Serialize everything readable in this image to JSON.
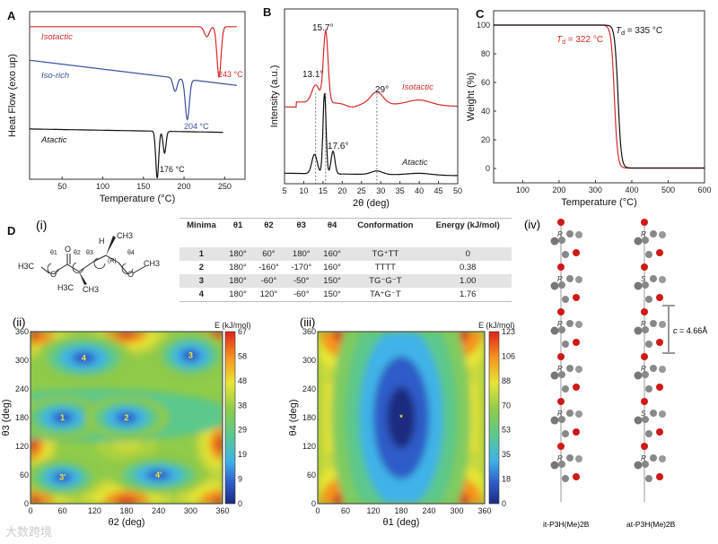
{
  "chart_data": [
    {
      "panel": "A",
      "type": "line",
      "xlabel": "Temperature (°C)",
      "ylabel": "Heat Flow (exo up)",
      "xlim": [
        10,
        275
      ],
      "ylim": [
        0,
        100
      ],
      "xticks": [
        "50",
        "100",
        "150",
        "200",
        "250"
      ],
      "series": [
        {
          "name": "Isotactic",
          "color": "#d42a2a",
          "x_range": [
            10,
            265
          ],
          "baseline": [
            91,
            91
          ],
          "peaks": [
            {
              "x": 228,
              "depth": 6,
              "w": 3
            },
            {
              "x": 243,
              "depth": 30,
              "w": 2.5
            }
          ],
          "annotation": "243 °C"
        },
        {
          "name": "Iso-rich",
          "color": "#3a4fa0",
          "x_range": [
            10,
            265
          ],
          "baseline": [
            71,
            56
          ],
          "peaks": [
            {
              "x": 189,
              "depth": 8,
              "w": 2.5
            },
            {
              "x": 204,
              "depth": 24,
              "w": 2.5
            }
          ],
          "annotation": "204 °C"
        },
        {
          "name": "Atactic",
          "color": "#111111",
          "x_range": [
            10,
            248
          ],
          "baseline": [
            30,
            28
          ],
          "peaks": [
            {
              "x": 167,
              "depth": 28,
              "w": 1.8
            },
            {
              "x": 176,
              "depth": 13,
              "w": 1.8
            }
          ],
          "annotation": "176 °C"
        }
      ]
    },
    {
      "panel": "B",
      "type": "line",
      "xlabel": "2θ (deg)",
      "ylabel": "Intensity (a.u.)",
      "xlim": [
        5,
        50
      ],
      "ylim": [
        0,
        100
      ],
      "xticks": [
        "5",
        "10",
        "15",
        "20",
        "25",
        "30",
        "35",
        "40",
        "45",
        "50"
      ],
      "reference_lines": [
        13.1,
        15.7,
        29
      ],
      "annotations": [
        "15.7°",
        "13.1°",
        "29°",
        "17.6°"
      ],
      "series": [
        {
          "name": "Isotactic",
          "color": "#d42a2a",
          "baseline": 44,
          "peaks": [
            {
              "x": 13.1,
              "h": 10,
              "w": 1.0
            },
            {
              "x": 15.7,
              "h": 41,
              "w": 0.6
            },
            {
              "x": 22.5,
              "h": -2,
              "w": 1.5
            },
            {
              "x": 29,
              "h": 7,
              "w": 1.6
            },
            {
              "x": 40,
              "h": 3,
              "w": 3
            }
          ]
        },
        {
          "name": "Atactic",
          "color": "#111111",
          "baseline": 4,
          "peaks": [
            {
              "x": 12.8,
              "h": 11,
              "w": 0.7
            },
            {
              "x": 15.4,
              "h": 46,
              "w": 0.4
            },
            {
              "x": 17.6,
              "h": 13,
              "w": 0.5
            },
            {
              "x": 29,
              "h": 2,
              "w": 1.5
            },
            {
              "x": 40,
              "h": 1,
              "w": 3
            }
          ]
        }
      ]
    },
    {
      "panel": "C",
      "type": "line",
      "xlabel": "Temperature (°C)",
      "ylabel": "Weight (%)",
      "xlim": [
        20,
        600
      ],
      "ylim": [
        -10,
        110
      ],
      "xticks": [
        "100",
        "200",
        "300",
        "400",
        "500",
        "600"
      ],
      "yticks": [
        "0",
        "20",
        "40",
        "60",
        "80",
        "100"
      ],
      "series": [
        {
          "name": "T_d = 322 °C",
          "label_main": "T",
          "label_sub": "d",
          "label_rest": " = 322 °C",
          "color": "#d42a2a",
          "midpoint": 352,
          "width": 4.5
        },
        {
          "name": "T_d = 335 °C",
          "label_main": "T",
          "label_sub": "d",
          "label_rest": " = 335 °C",
          "color": "#111111",
          "midpoint": 362,
          "width": 4.5
        }
      ]
    },
    {
      "panel": "D(ii)",
      "type": "heatmap",
      "xlabel": "θ2 (deg)",
      "ylabel": "θ3 (deg)",
      "colorbar_label": "E (kJ/mol)",
      "xlim": [
        0,
        360
      ],
      "ylim": [
        0,
        360
      ],
      "xticks": [
        "0",
        "60",
        "120",
        "180",
        "240",
        "300",
        "360"
      ],
      "yticks": [
        "0",
        "60",
        "120",
        "180",
        "240",
        "300",
        "360"
      ],
      "colorbar_ticks": [
        "0",
        "9",
        "19",
        "29",
        "38",
        "48",
        "58",
        "67"
      ],
      "minima": [
        {
          "label": "1",
          "x": 60,
          "y": 180
        },
        {
          "label": "2",
          "x": 180,
          "y": 180
        },
        {
          "label": "3",
          "x": 300,
          "y": 310
        },
        {
          "label": "4",
          "x": 100,
          "y": 305
        },
        {
          "label": "3'",
          "x": 60,
          "y": 55
        },
        {
          "label": "4'",
          "x": 240,
          "y": 60
        }
      ]
    },
    {
      "panel": "D(iii)",
      "type": "heatmap",
      "xlabel": "θ1 (deg)",
      "ylabel": "θ4 (deg)",
      "colorbar_label": "E (kJ/mol)",
      "xlim": [
        0,
        360
      ],
      "ylim": [
        0,
        360
      ],
      "xticks": [
        "0",
        "60",
        "120",
        "180",
        "240",
        "300",
        "360"
      ],
      "yticks": [
        "0",
        "60",
        "120",
        "180",
        "240",
        "300",
        "360"
      ],
      "colorbar_ticks": [
        "0",
        "18",
        "35",
        "53",
        "70",
        "88",
        "106",
        "123"
      ],
      "minima": [
        {
          "label": "*",
          "x": 180,
          "y": 180
        }
      ]
    }
  ],
  "labels": {
    "A": "A",
    "B": "B",
    "C": "C",
    "D": "D",
    "i": "(i)",
    "ii": "(ii)",
    "iii": "(iii)",
    "iv": "(iv)"
  },
  "table": {
    "headers": [
      "Minima",
      "θ1",
      "θ2",
      "θ3",
      "θ4",
      "Conformation",
      "Energy (kJ/mol)"
    ],
    "rows": [
      [
        "1",
        "180°",
        "60°",
        "180°",
        "160°",
        "TG⁺TT",
        "0"
      ],
      [
        "2",
        "180°",
        "-160°",
        "-170°",
        "160°",
        "TTTT",
        "0.38"
      ],
      [
        "3",
        "180°",
        "-60°",
        "-50°",
        "150°",
        "TG⁻G⁻T",
        "1.00"
      ],
      [
        "4",
        "180°",
        "120°",
        "-60°",
        "150°",
        "TA⁺G⁻T",
        "1.76"
      ]
    ]
  },
  "molecule": {
    "atoms": [
      "H3C",
      "O",
      "O",
      "H",
      "CH3",
      "H3C",
      "CH3",
      "CH3",
      "(R)"
    ],
    "angles": [
      "θ1",
      "θ2",
      "θ3",
      "θ4"
    ]
  },
  "structures": {
    "it_label": "it-P3H(Me)2B",
    "at_label": "at-P3H(Me)2B",
    "it_stereo": [
      "R",
      "R",
      "R",
      "R",
      "R",
      "R"
    ],
    "at_stereo": [
      "R",
      "S",
      "R",
      "R",
      "S",
      "R"
    ],
    "spacing_label": "c",
    "spacing_value": "= 4.66Å"
  },
  "watermark": "大数跨境"
}
